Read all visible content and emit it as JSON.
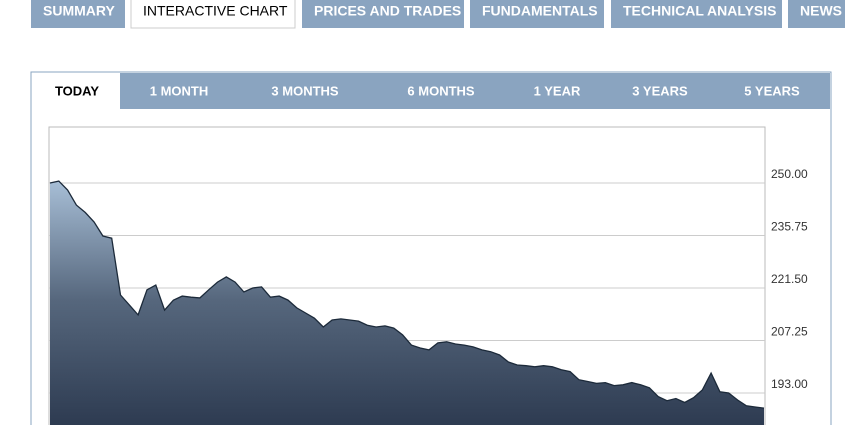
{
  "tabs": [
    {
      "label": "SUMMARY",
      "active": false
    },
    {
      "label": "INTERACTIVE CHART",
      "active": true
    },
    {
      "label": "PRICES AND TRADES",
      "active": false
    },
    {
      "label": "FUNDAMENTALS",
      "active": false
    },
    {
      "label": "TECHNICAL ANALYSIS",
      "active": false
    },
    {
      "label": "NEWS A",
      "active": false
    }
  ],
  "range_tabs": [
    {
      "label": "TODAY",
      "active": true
    },
    {
      "label": "1 MONTH",
      "active": false
    },
    {
      "label": "3 MONTHS",
      "active": false
    },
    {
      "label": "6 MONTHS",
      "active": false
    },
    {
      "label": "1 YEAR",
      "active": false
    },
    {
      "label": "3 YEARS",
      "active": false
    },
    {
      "label": "5 YEARS",
      "active": false
    }
  ],
  "chart_data": {
    "type": "area",
    "color": "#1c2a3a",
    "grid": true,
    "ylim": [
      184.3,
      265.2
    ],
    "yticks": [
      {
        "value": 193,
        "label": "193.00"
      },
      {
        "value": 207.25,
        "label": "207.25"
      },
      {
        "value": 221.5,
        "label": "221.50"
      },
      {
        "value": 235.75,
        "label": "235.75"
      },
      {
        "value": 250,
        "label": "250.00"
      }
    ],
    "values": [
      250,
      250.5,
      248.1,
      244,
      242,
      239.4,
      235.6,
      235,
      219.6,
      216.9,
      214.2,
      221,
      222.3,
      215.5,
      218.2,
      219.3,
      219,
      218.8,
      221,
      223.1,
      224.5,
      223.1,
      220.4,
      221.5,
      221.8,
      219,
      219.3,
      218.2,
      216.1,
      214.7,
      213.3,
      210.9,
      212.8,
      213.1,
      212.8,
      212.5,
      211.4,
      210.9,
      211.2,
      210.6,
      208.8,
      206,
      205.2,
      204.7,
      206.6,
      206.9,
      206.3,
      206,
      205.5,
      204.7,
      204.2,
      203.3,
      201.4,
      200.6,
      200.4,
      200.1,
      200.4,
      200.1,
      199.3,
      198.8,
      196.6,
      196.1,
      195.6,
      195.8,
      195,
      195.2,
      195.8,
      195.2,
      194.4,
      192,
      190.9,
      191.5,
      190.4,
      191.7,
      193.8,
      198.4,
      193.3,
      193,
      191.1,
      189.5,
      189.2,
      188.9
    ]
  }
}
